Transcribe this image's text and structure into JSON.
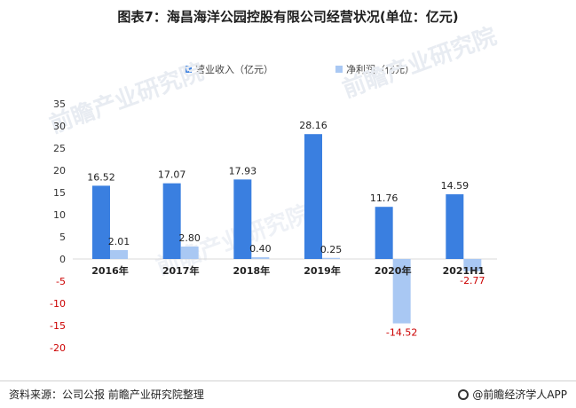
{
  "title": "图表7：海昌海洋公园控股有限公司经营状况(单位：亿元)",
  "footer": {
    "source": "资料来源：公司公报 前瞻产业研究院整理",
    "brand": "@前瞻经济学人APP"
  },
  "watermark": "前瞻产业研究院",
  "colors": {
    "revenue": "#3a7fe0",
    "profit": "#a9c8f3",
    "negative_label": "#cc0000"
  },
  "chart_data": {
    "type": "bar",
    "categories": [
      "2016年",
      "2017年",
      "2018年",
      "2019年",
      "2020年",
      "2021H1"
    ],
    "series": [
      {
        "name": "营业收入（亿元）",
        "values": [
          16.52,
          17.07,
          17.93,
          28.16,
          11.76,
          14.59
        ]
      },
      {
        "name": "净利润（亿元）",
        "values": [
          2.01,
          2.8,
          0.4,
          0.25,
          -14.52,
          -2.77
        ]
      }
    ],
    "value_labels": [
      [
        "16.52",
        "17.07",
        "17.93",
        "28.16",
        "11.76",
        "14.59"
      ],
      [
        "2.01",
        "2.80",
        "0.40",
        "0.25",
        "-14.52",
        "-2.77"
      ]
    ],
    "y_ticks": [
      "35",
      "30",
      "25",
      "20",
      "15",
      "10",
      "5",
      "0",
      "-5",
      "-10",
      "-15",
      "-20"
    ],
    "ylim": [
      -20,
      35
    ],
    "legend_position": "top-center",
    "grid": false
  }
}
